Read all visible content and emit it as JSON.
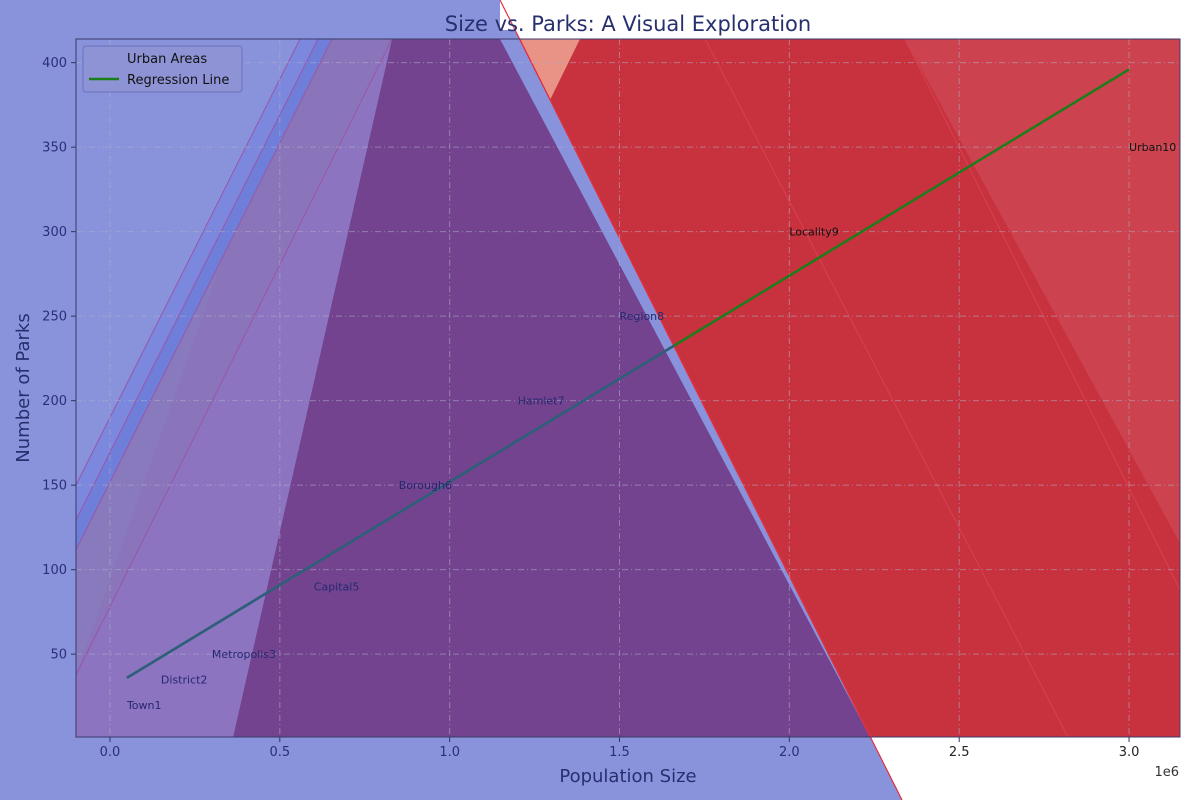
{
  "chart_data": {
    "type": "scatter",
    "title": "Size vs. Parks: A Visual Exploration",
    "xlabel": "Population Size",
    "ylabel": "Number of Parks",
    "x_offset_label": "1e6",
    "xlim": [
      -0.1,
      3.15
    ],
    "ylim": [
      1,
      414
    ],
    "x_ticks": [
      0.0,
      0.5,
      1.0,
      1.5,
      2.0,
      2.5,
      3.0
    ],
    "x_tick_labels": [
      "0.0",
      "0.5",
      "1.0",
      "1.5",
      "2.0",
      "2.5",
      "3.0"
    ],
    "y_ticks": [
      50,
      100,
      150,
      200,
      250,
      300,
      350,
      400
    ],
    "grid": true,
    "legend_position": "top-left",
    "legend": [
      {
        "label": "Urban Areas",
        "marker": "none"
      },
      {
        "label": "Regression Line",
        "color": "#1a7f1a"
      }
    ],
    "points": [
      {
        "label": "Town1",
        "x": 0.05,
        "y": 20
      },
      {
        "label": "District2",
        "x": 0.15,
        "y": 35
      },
      {
        "label": "Metropolis3",
        "x": 0.3,
        "y": 50
      },
      {
        "label": "Capital5",
        "x": 0.6,
        "y": 90
      },
      {
        "label": "Borough6",
        "x": 0.85,
        "y": 150
      },
      {
        "label": "Hamlet7",
        "x": 1.2,
        "y": 200
      },
      {
        "label": "Region8",
        "x": 1.5,
        "y": 250
      },
      {
        "label": "Locality9",
        "x": 2.0,
        "y": 300
      },
      {
        "label": "Urban10",
        "x": 3.0,
        "y": 350
      }
    ],
    "regression": {
      "x": [
        0.05,
        3.0
      ],
      "y": [
        36,
        396
      ]
    }
  },
  "colors": {
    "background_blue": "#8893dc",
    "red": "#c8323e",
    "purple": "#744390",
    "salmon": "#e89385",
    "regression": "#1a7f1a",
    "title_dark": "#27306e",
    "label_dark": "#26286f",
    "tick_dark": "#2b2f78"
  }
}
